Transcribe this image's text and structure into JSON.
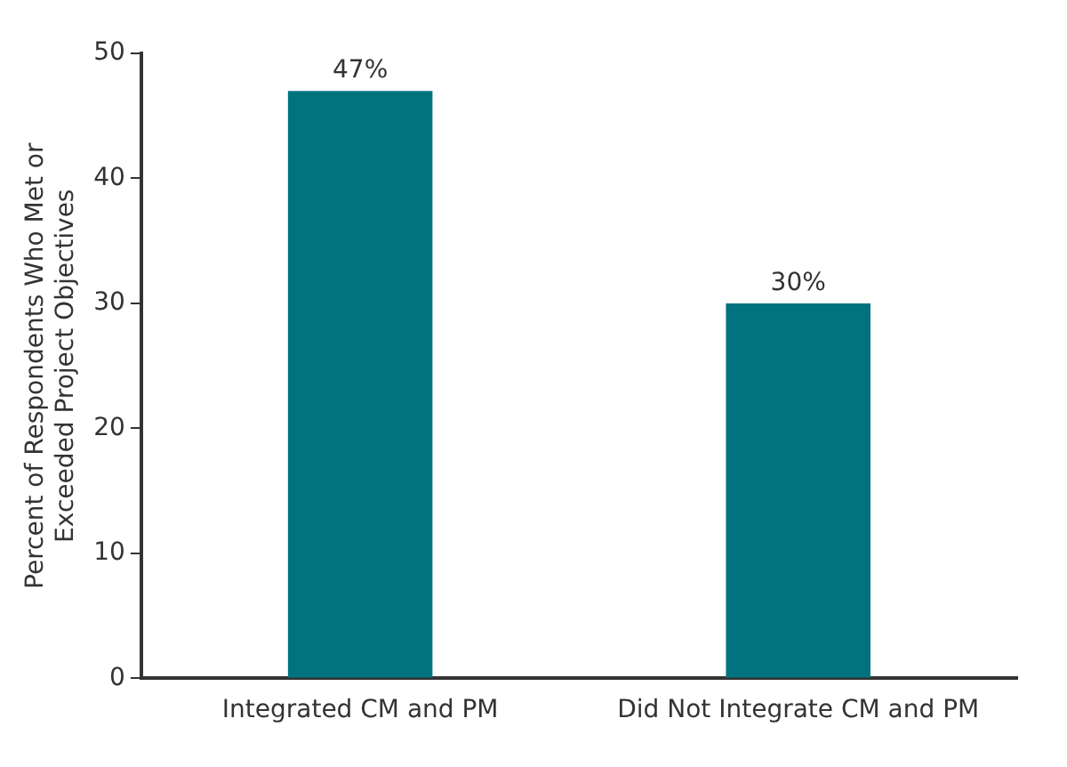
{
  "chart_data": {
    "type": "bar",
    "ylabel": "Percent of Respondents Who Met or\nExceeded Project Objectives",
    "categories": [
      "Integrated CM and PM",
      "Did Not Integrate CM and PM"
    ],
    "values": [
      47,
      30
    ],
    "value_labels": [
      "47%",
      "30%"
    ],
    "color": "#00737f",
    "ylim": [
      0,
      50
    ],
    "yticks": [
      0,
      10,
      20,
      30,
      40,
      50
    ],
    "grid": false,
    "legend": false
  }
}
